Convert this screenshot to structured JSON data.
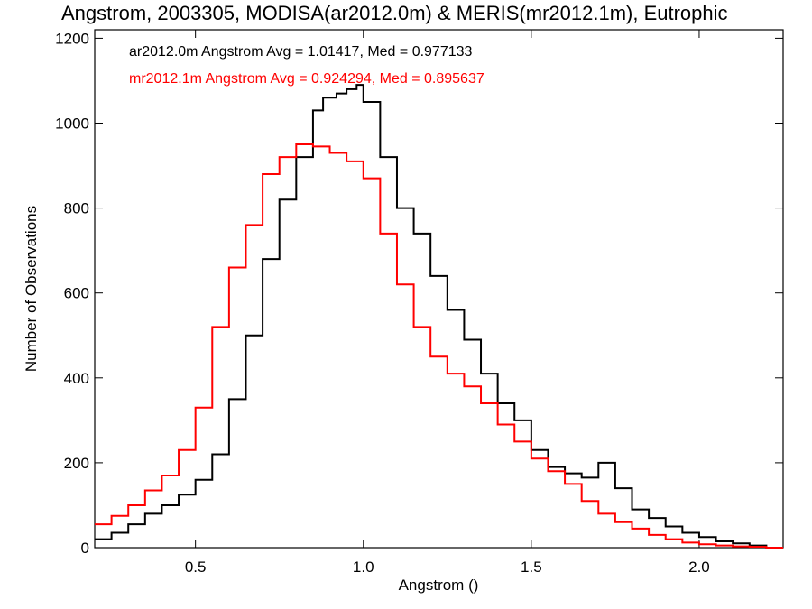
{
  "chart_data": {
    "type": "line",
    "title": "Angstrom, 2003305, MODISA(ar2012.0m) & MERIS(mr2012.1m), Eutrophic",
    "xlabel": "Angstrom ()",
    "ylabel": "Number of Observations",
    "xlim": [
      0.2,
      2.25
    ],
    "ylim": [
      0,
      1220
    ],
    "xticks": [
      0.5,
      1.0,
      1.5,
      2.0
    ],
    "xtick_labels": [
      "0.5",
      "1.0",
      "1.5",
      "2.0"
    ],
    "yticks": [
      0,
      200,
      400,
      600,
      800,
      1000,
      1200
    ],
    "ytick_labels": [
      "0",
      "200",
      "400",
      "600",
      "800",
      "1000",
      "1200"
    ],
    "grid": false,
    "legend_position": "top-left",
    "annotations": [
      "ar2012.0m Angstrom Avg = 1.01417, Med = 0.977133",
      "mr2012.1m Angstrom Avg = 0.924294, Med = 0.895637"
    ],
    "series": [
      {
        "color": "#000000",
        "x": [
          0.2,
          0.25,
          0.3,
          0.35,
          0.4,
          0.45,
          0.5,
          0.55,
          0.6,
          0.65,
          0.7,
          0.75,
          0.8,
          0.85,
          0.88,
          0.92,
          0.95,
          0.98,
          1.0,
          1.05,
          1.1,
          1.15,
          1.2,
          1.25,
          1.3,
          1.35,
          1.4,
          1.45,
          1.5,
          1.55,
          1.6,
          1.65,
          1.7,
          1.75,
          1.8,
          1.85,
          1.9,
          1.95,
          2.0,
          2.05,
          2.1,
          2.15,
          2.2,
          2.25
        ],
        "y": [
          20,
          35,
          55,
          80,
          100,
          125,
          160,
          220,
          350,
          500,
          680,
          820,
          920,
          1030,
          1060,
          1070,
          1080,
          1090,
          1050,
          920,
          800,
          740,
          640,
          560,
          490,
          410,
          340,
          300,
          230,
          190,
          175,
          165,
          200,
          140,
          90,
          70,
          50,
          35,
          25,
          15,
          10,
          5,
          0,
          0
        ]
      },
      {
        "color": "#ff0000",
        "x": [
          0.2,
          0.25,
          0.3,
          0.35,
          0.4,
          0.45,
          0.5,
          0.55,
          0.6,
          0.65,
          0.7,
          0.75,
          0.8,
          0.85,
          0.9,
          0.95,
          1.0,
          1.05,
          1.1,
          1.15,
          1.2,
          1.25,
          1.3,
          1.35,
          1.4,
          1.45,
          1.5,
          1.55,
          1.6,
          1.65,
          1.7,
          1.75,
          1.8,
          1.85,
          1.9,
          1.95,
          2.0,
          2.05,
          2.1,
          2.15,
          2.2,
          2.25
        ],
        "y": [
          55,
          75,
          100,
          135,
          170,
          230,
          330,
          520,
          660,
          760,
          880,
          920,
          950,
          945,
          930,
          910,
          870,
          740,
          620,
          520,
          450,
          410,
          380,
          340,
          290,
          250,
          210,
          180,
          150,
          110,
          80,
          60,
          45,
          30,
          20,
          12,
          8,
          5,
          3,
          2,
          0,
          0
        ]
      }
    ]
  }
}
